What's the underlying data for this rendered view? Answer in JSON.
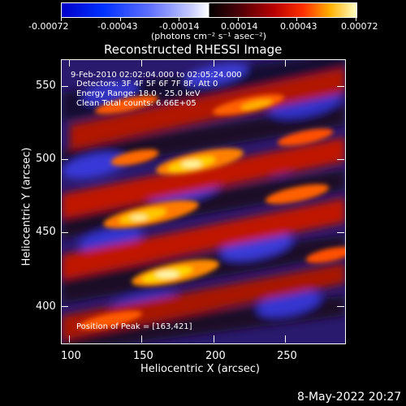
{
  "colorbar": {
    "tick_labels": [
      "-0.00072",
      "-0.00043",
      "-0.00014",
      "0.00014",
      "0.00043",
      "0.00072"
    ],
    "unit_label": "(photons cm⁻² s⁻¹ asec⁻²)",
    "gradient_colors": [
      "#0000c8",
      "#0030ff",
      "#5a6cff",
      "#b4bcff",
      "#ffffff",
      "#000000",
      "#3a0810",
      "#8a0000",
      "#ff0000",
      "#ff7000",
      "#ffd400",
      "#ffffff"
    ]
  },
  "plot": {
    "title": "Reconstructed RHESSI Image",
    "info_lines": [
      "9-Feb-2010 02:02:04.000 to 02:05:24.000",
      "Detectors: 3F 4F 5F 6F 7F 8F, Att 0",
      "Energy Range: 18.0 - 25.0 keV",
      "Clean    Total counts: 6.66E+05"
    ],
    "peak_label": "Position of Peak = [163,421]",
    "x_axis": {
      "label": "Heliocentric X (arcsec)",
      "ticks": [
        "100",
        "150",
        "200",
        "250"
      ]
    },
    "y_axis": {
      "label": "Heliocentric Y (arcsec)",
      "ticks": [
        "550",
        "500",
        "450",
        "400"
      ]
    }
  },
  "footer": {
    "timestamp": "8-May-2022 20:27"
  }
}
